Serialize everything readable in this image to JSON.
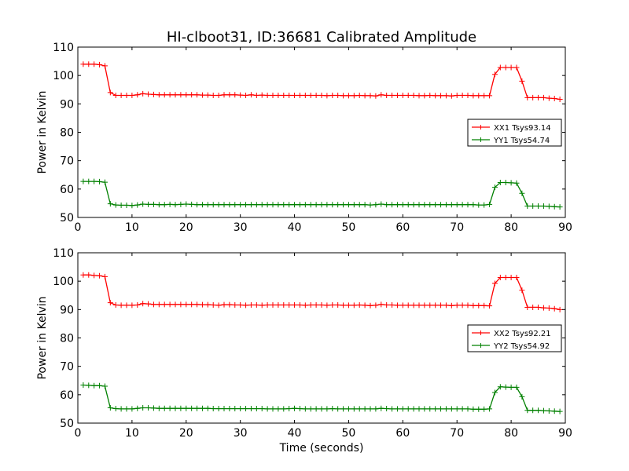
{
  "figure": {
    "title": "HI-clboot31, ID:36681 Calibrated Amplitude"
  },
  "chart_data": [
    {
      "type": "line",
      "ylabel": "Power in Kelvin",
      "xlabel": "",
      "xlim": [
        0,
        90
      ],
      "ylim": [
        50,
        110
      ],
      "xticks": [
        0,
        10,
        20,
        30,
        40,
        50,
        60,
        70,
        80,
        90
      ],
      "yticks": [
        50,
        60,
        70,
        80,
        90,
        100,
        110
      ],
      "grid": false,
      "legend_position": "center-right",
      "x": [
        1,
        2,
        3,
        4,
        5,
        6,
        7,
        8,
        9,
        10,
        11,
        12,
        13,
        14,
        15,
        16,
        17,
        18,
        19,
        20,
        21,
        22,
        23,
        24,
        25,
        26,
        27,
        28,
        29,
        30,
        31,
        32,
        33,
        34,
        35,
        36,
        37,
        38,
        39,
        40,
        41,
        42,
        43,
        44,
        45,
        46,
        47,
        48,
        49,
        50,
        51,
        52,
        53,
        54,
        55,
        56,
        57,
        58,
        59,
        60,
        61,
        62,
        63,
        64,
        65,
        66,
        67,
        68,
        69,
        70,
        71,
        72,
        73,
        74,
        75,
        76,
        77,
        78,
        79,
        80,
        81,
        82,
        83,
        84,
        85,
        86,
        87,
        88,
        89
      ],
      "series": [
        {
          "name": "XX1 Tsys93.14",
          "color": "#ff0000",
          "values": [
            104.0,
            104.0,
            104.0,
            103.8,
            103.4,
            94.0,
            93.0,
            93.0,
            93.0,
            93.0,
            93.2,
            93.6,
            93.4,
            93.3,
            93.2,
            93.2,
            93.2,
            93.2,
            93.2,
            93.2,
            93.2,
            93.2,
            93.1,
            93.1,
            93.0,
            93.0,
            93.2,
            93.2,
            93.2,
            93.1,
            93.0,
            93.2,
            93.0,
            93.1,
            93.0,
            93.0,
            93.0,
            93.0,
            93.0,
            93.0,
            93.0,
            93.0,
            93.0,
            93.0,
            93.0,
            92.9,
            93.0,
            93.0,
            92.9,
            92.9,
            92.9,
            93.0,
            92.9,
            92.9,
            92.8,
            93.2,
            93.0,
            93.0,
            93.0,
            93.0,
            93.0,
            93.0,
            92.9,
            92.9,
            93.0,
            92.9,
            92.9,
            92.9,
            92.8,
            93.0,
            93.0,
            93.0,
            92.9,
            92.9,
            92.9,
            92.9,
            100.4,
            102.8,
            102.8,
            102.8,
            102.8,
            98.0,
            92.2,
            92.2,
            92.2,
            92.2,
            92.0,
            91.9,
            91.6
          ]
        },
        {
          "name": "YY1 Tsys54.74",
          "color": "#008000",
          "values": [
            62.7,
            62.7,
            62.7,
            62.6,
            62.4,
            54.8,
            54.4,
            54.3,
            54.3,
            54.2,
            54.4,
            54.7,
            54.6,
            54.6,
            54.5,
            54.5,
            54.6,
            54.5,
            54.6,
            54.7,
            54.6,
            54.5,
            54.5,
            54.5,
            54.5,
            54.5,
            54.5,
            54.5,
            54.5,
            54.5,
            54.5,
            54.5,
            54.5,
            54.5,
            54.5,
            54.5,
            54.5,
            54.5,
            54.5,
            54.5,
            54.5,
            54.5,
            54.5,
            54.5,
            54.5,
            54.5,
            54.5,
            54.5,
            54.5,
            54.5,
            54.5,
            54.5,
            54.5,
            54.4,
            54.5,
            54.7,
            54.5,
            54.5,
            54.5,
            54.5,
            54.5,
            54.5,
            54.5,
            54.5,
            54.5,
            54.5,
            54.5,
            54.5,
            54.5,
            54.5,
            54.5,
            54.5,
            54.5,
            54.4,
            54.4,
            54.6,
            60.6,
            62.3,
            62.3,
            62.2,
            62.1,
            58.5,
            54.0,
            54.0,
            54.0,
            54.0,
            53.9,
            53.8,
            53.7
          ]
        }
      ]
    },
    {
      "type": "line",
      "ylabel": "Power in Kelvin",
      "xlabel": "Time (seconds)",
      "xlim": [
        0,
        90
      ],
      "ylim": [
        50,
        110
      ],
      "xticks": [
        0,
        10,
        20,
        30,
        40,
        50,
        60,
        70,
        80,
        90
      ],
      "yticks": [
        50,
        60,
        70,
        80,
        90,
        100,
        110
      ],
      "grid": false,
      "legend_position": "center-right",
      "x": [
        1,
        2,
        3,
        4,
        5,
        6,
        7,
        8,
        9,
        10,
        11,
        12,
        13,
        14,
        15,
        16,
        17,
        18,
        19,
        20,
        21,
        22,
        23,
        24,
        25,
        26,
        27,
        28,
        29,
        30,
        31,
        32,
        33,
        34,
        35,
        36,
        37,
        38,
        39,
        40,
        41,
        42,
        43,
        44,
        45,
        46,
        47,
        48,
        49,
        50,
        51,
        52,
        53,
        54,
        55,
        56,
        57,
        58,
        59,
        60,
        61,
        62,
        63,
        64,
        65,
        66,
        67,
        68,
        69,
        70,
        71,
        72,
        73,
        74,
        75,
        76,
        77,
        78,
        79,
        80,
        81,
        82,
        83,
        84,
        85,
        86,
        87,
        88,
        89
      ],
      "series": [
        {
          "name": "XX2 Tsys92.21",
          "color": "#ff0000",
          "values": [
            102.2,
            102.2,
            102.0,
            101.9,
            101.6,
            92.4,
            91.6,
            91.5,
            91.5,
            91.5,
            91.6,
            92.1,
            92.0,
            91.8,
            91.8,
            91.8,
            91.8,
            91.8,
            91.8,
            91.8,
            91.8,
            91.8,
            91.7,
            91.7,
            91.6,
            91.5,
            91.7,
            91.7,
            91.6,
            91.6,
            91.5,
            91.6,
            91.6,
            91.5,
            91.6,
            91.6,
            91.6,
            91.6,
            91.6,
            91.6,
            91.6,
            91.5,
            91.6,
            91.6,
            91.6,
            91.5,
            91.6,
            91.6,
            91.5,
            91.5,
            91.5,
            91.6,
            91.5,
            91.4,
            91.5,
            91.8,
            91.6,
            91.6,
            91.5,
            91.5,
            91.5,
            91.5,
            91.5,
            91.5,
            91.5,
            91.5,
            91.5,
            91.5,
            91.4,
            91.5,
            91.5,
            91.5,
            91.4,
            91.4,
            91.4,
            91.3,
            99.2,
            101.3,
            101.3,
            101.3,
            101.3,
            96.8,
            90.8,
            90.8,
            90.8,
            90.6,
            90.5,
            90.3,
            90.0
          ]
        },
        {
          "name": "YY2 Tsys54.92",
          "color": "#008000",
          "values": [
            63.4,
            63.3,
            63.2,
            63.2,
            63.0,
            55.4,
            55.1,
            55.0,
            55.0,
            55.0,
            55.2,
            55.4,
            55.4,
            55.3,
            55.2,
            55.2,
            55.2,
            55.2,
            55.2,
            55.2,
            55.2,
            55.2,
            55.2,
            55.2,
            55.1,
            55.1,
            55.1,
            55.1,
            55.1,
            55.1,
            55.1,
            55.1,
            55.1,
            55.1,
            55.0,
            55.0,
            55.0,
            55.0,
            55.1,
            55.2,
            55.1,
            55.0,
            55.0,
            55.0,
            55.0,
            55.0,
            55.1,
            55.0,
            55.0,
            55.0,
            55.0,
            55.0,
            55.0,
            55.0,
            55.0,
            55.2,
            55.1,
            55.0,
            55.0,
            55.0,
            55.0,
            55.0,
            55.0,
            55.0,
            55.0,
            55.0,
            55.0,
            55.0,
            55.0,
            55.0,
            55.0,
            55.0,
            54.9,
            54.9,
            54.9,
            55.0,
            60.8,
            62.8,
            62.7,
            62.6,
            62.6,
            59.3,
            54.5,
            54.5,
            54.5,
            54.4,
            54.3,
            54.2,
            54.1
          ]
        }
      ]
    }
  ]
}
